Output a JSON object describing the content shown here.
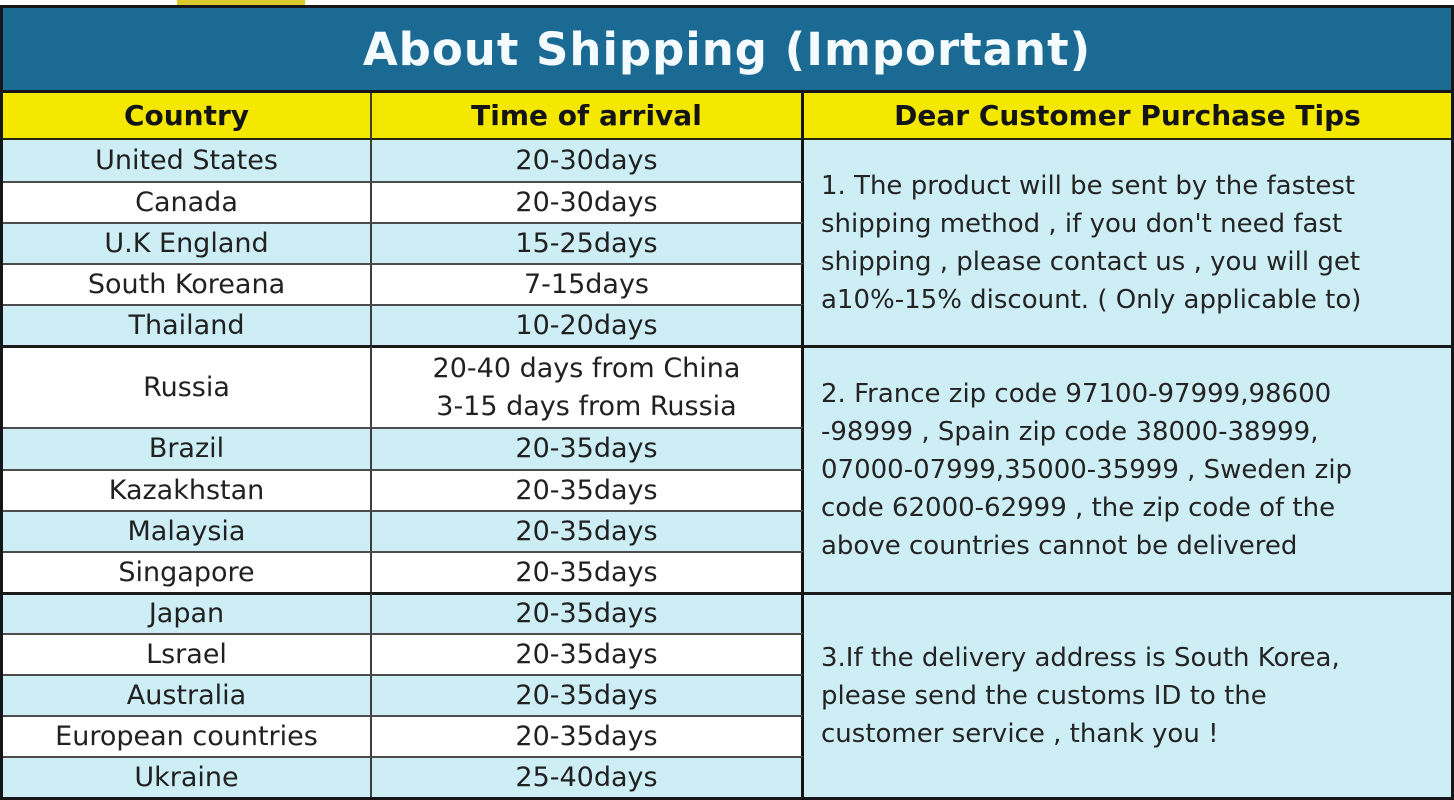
{
  "title": "About Shipping (Important)",
  "colors": {
    "title_bar_blue": "#1A6A94",
    "header_yellow": "#F4E800",
    "row_light_blue": "#CDEEF5",
    "row_white": "#FFFFFF",
    "top_strip_yellow": "#D9C92C",
    "border_dark": "#16161A",
    "text_dark": "#212121",
    "title_text": "#F4FBFE"
  },
  "table": {
    "headers": [
      "Country",
      "Time of arrival",
      "Dear Customer Purchase Tips"
    ],
    "rows": [
      {
        "country": "United States",
        "time": "20-30days"
      },
      {
        "country": "Canada",
        "time": "20-30days"
      },
      {
        "country": "U.K England",
        "time": "15-25days"
      },
      {
        "country": "South Koreana",
        "time": "7-15days"
      },
      {
        "country": "Thailand",
        "time": "10-20days"
      },
      {
        "country": "Russia",
        "time": "20-40 days from China\n3-15 days from Russia"
      },
      {
        "country": "Brazil",
        "time": "20-35days"
      },
      {
        "country": "Kazakhstan",
        "time": "20-35days"
      },
      {
        "country": "Malaysia",
        "time": "20-35days"
      },
      {
        "country": "Singapore",
        "time": "20-35days"
      },
      {
        "country": "Japan",
        "time": "20-35days"
      },
      {
        "country": "Lsrael",
        "time": "20-35days"
      },
      {
        "country": "Australia",
        "time": "20-35days"
      },
      {
        "country": "European countries",
        "time": "20-35days"
      },
      {
        "country": "Ukraine",
        "time": "25-40days"
      }
    ],
    "tips": [
      "1. The product will be sent by the fastest\nshipping method , if you don't need fast\nshipping , please contact us , you will get\na10%-15% discount. ( Only applicable to)",
      "2. France zip code 97100-97999,98600\n-98999 , Spain zip code 38000-38999,\n07000-07999,35000-35999 , Sweden zip\ncode 62000-62999 , the zip code of the\nabove countries cannot be delivered",
      "3.If the delivery address is South Korea,\nplease send the customs ID to the\ncustomer service , thank you !"
    ]
  }
}
